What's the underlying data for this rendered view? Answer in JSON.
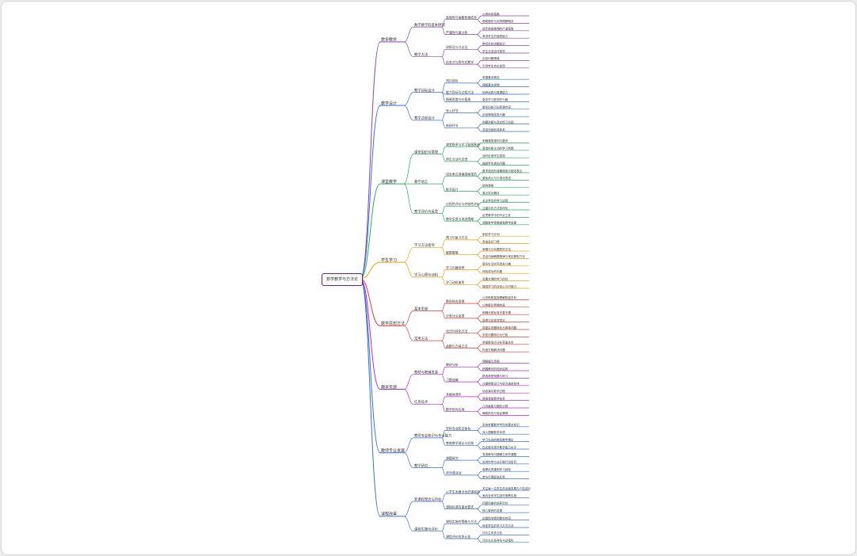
{
  "root": "数学教学与方法论",
  "colors": {
    "purple": "#8e44ad",
    "blue": "#3a6fd8",
    "green": "#27ae60",
    "orange": "#f39c12",
    "red": "#e53935",
    "magenta": "#c026d3"
  },
  "branches": [
    {
      "label": "数学教学",
      "color": "purple",
      "children": [
        {
          "label": "数学教学的基本原则",
          "children": [
            {
              "label": "直观性与抽象性相结合",
              "children": [
                "从具体到抽象",
                "借助图形与实物理解概念"
              ]
            },
            {
              "label": "严谨性与量力性",
              "children": [
                "逐步提高推理的严谨程度",
                "考虑学生的接受能力"
              ]
            }
          ]
        },
        {
          "label": "教学方法",
          "children": [
            {
              "label": "讲授法与讨论法",
              "children": [
                "教师系统讲解知识",
                "学生交流合作探究"
              ]
            },
            {
              "label": "启发式与探究式教学",
              "children": [
                "创设问题情境",
                "引导学生自主发现"
              ]
            }
          ]
        }
      ]
    },
    {
      "label": "教学设计",
      "color": "blue",
      "children": [
        {
          "label": "教学目标设计",
          "children": [
            {
              "label": "知识目标",
              "children": [
                "掌握基本概念",
                "理解基本原理"
              ]
            },
            {
              "label": "能力目标与过程方法",
              "children": [
                "培养运算与推理能力"
              ]
            },
            {
              "label": "情感态度与价值观",
              "children": [
                "激发学习数学的兴趣"
              ]
            }
          ]
        },
        {
          "label": "教学过程设计",
          "children": [
            {
              "label": "导入环节",
              "children": [
                "联系旧知引出新课内容",
                "创设情境激发兴趣"
              ]
            },
            {
              "label": "新授环节",
              "children": [
                "例题讲解与变式练习巩固",
                "总结归纳形成体系"
              ]
            }
          ]
        }
      ]
    },
    {
      "label": "课堂教学",
      "color": "green",
      "children": [
        {
          "label": "课堂组织与管理",
          "children": [
            {
              "label": "课堂秩序与学习氛围营造",
              "children": [
                "明确课堂规则与要求",
                "营造积极主动的学习氛围"
              ]
            },
            {
              "label": "师生互动与交流",
              "children": [
                "及时反馈学生表现",
                "鼓励学生提出问题"
              ]
            }
          ]
        },
        {
          "label": "教学语言",
          "children": [
            {
              "label": "语言表达准确清晰规范",
              "children": [
                "数学语言的准确使用与规范表达",
                "避免歧义与口语化表述"
              ]
            },
            {
              "label": "板书设计",
              "children": [
                "结构清晰",
                "重点突出醒目"
              ]
            }
          ]
        },
        {
          "label": "教学评价与反思",
          "children": [
            {
              "label": "过程性评价与终结性评价",
              "children": [
                "关注学生的学习过程",
                "注重评价方式多样化"
              ]
            },
            {
              "label": "教学反思与改进策略",
              "children": [
                "反思教学中的不足之处",
                "调整教学策略提高教学效果"
              ]
            }
          ]
        }
      ]
    },
    {
      "label": "学生学习",
      "color": "orange",
      "children": [
        {
          "label": "学习方法指导",
          "children": [
            {
              "label": "预习与复习方法",
              "children": [
                "制定学习计划",
                "养成良好习惯"
              ]
            },
            {
              "label": "解题策略",
              "children": [
                "审题与分析题意的方法",
                "总结归纳解题规律与常见题型方法"
              ]
            }
          ]
        },
        {
          "label": "学习心理与动机",
          "children": [
            {
              "label": "学习兴趣培养",
              "children": [
                "联系生活实际激发兴趣",
                "体验成功的乐趣"
              ]
            },
            {
              "label": "学习动机激发",
              "children": [
                "设置合理的学习目标",
                "增强学习的自信心与内驱力"
              ]
            }
          ]
        }
      ]
    },
    {
      "label": "数学思想方法",
      "color": "red",
      "children": [
        {
          "label": "基本思想",
          "children": [
            {
              "label": "数形结合思想",
              "children": [
                "以形助数直观理解数量关系",
                "以数解形精确刻画"
              ]
            },
            {
              "label": "分类讨论思想",
              "children": [
                "明确分类标准不重不漏",
                "逐类讨论综合结论"
              ]
            }
          ]
        },
        {
          "label": "常用方法",
          "children": [
            {
              "label": "化归与转化方法",
              "children": [
                "将复杂问题转化为简单问题",
                "未知问题转化为已知"
              ]
            },
            {
              "label": "函数与方程方法",
              "children": [
                "用函数观点分析变量关系",
                "构造方程解决问题"
              ]
            }
          ]
        }
      ]
    },
    {
      "label": "教学资源",
      "color": "magenta",
      "children": [
        {
          "label": "教材与教辅资源",
          "children": [
            {
              "label": "教材分析",
              "children": [
                "理解编写意图",
                "把握教材的知识结构"
              ]
            },
            {
              "label": "习题选编",
              "children": [
                "精选典型例题与练习",
                "注重梯度设计与层次递进安排"
              ]
            }
          ]
        },
        {
          "label": "信息技术",
          "children": [
            {
              "label": "多媒体课件",
              "children": [
                "动态演示数学过程",
                "提高课堂教学效率"
              ]
            },
            {
              "label": "数学软件应用",
              "children": [
                "几何画板与图形计算",
                "辅助探究与验证猜想"
              ]
            }
          ]
        }
      ]
    },
    {
      "label": "教师专业发展",
      "color": "blue",
      "children": [
        {
          "label": "教师专业知识与专业能力",
          "children": [
            {
              "label": "学科专业知识体系",
              "children": [
                "系统掌握数学学科的基本知识",
                "深入理解数学本质"
              ]
            },
            {
              "label": "教育教学理论与实践",
              "children": [
                "学习先进的教育教学理论",
                "在实践中提升教学能力水平"
              ]
            }
          ]
        },
        {
          "label": "教学研究",
          "children": [
            {
              "label": "课题研究",
              "children": [
                "发现教学问题确立研究课题",
                "运用科学方法开展行动研究"
              ]
            },
            {
              "label": "听评课活动",
              "children": [
                "观摩优秀课例学习经验",
                "参与评课促进反思"
              ]
            }
          ]
        }
      ]
    },
    {
      "label": "课程改革",
      "color": "blue",
      "children": [
        {
          "label": "新课程理念与目标",
          "children": [
            {
              "label": "以学生发展为本的课程观",
              "children": [
                "关注每一位学生的全面发展与个性成长",
                "面向全体学生因材施教实施"
              ]
            },
            {
              "label": "课程标准的基本要求",
              "children": [
                "四基四能的培养目标",
                "核心素养的发展"
              ]
            }
          ]
        },
        {
          "label": "课程实施与评价",
          "children": [
            {
              "label": "课程实施的策略与方法",
              "children": [
                "创造性地使用教材内容",
                "转变学生的学习方式方法"
              ]
            },
            {
              "label": "课程评价的多元化",
              "children": [
                "评价主体多元化",
                "评价方式多样化与过程化"
              ]
            }
          ]
        }
      ]
    }
  ]
}
